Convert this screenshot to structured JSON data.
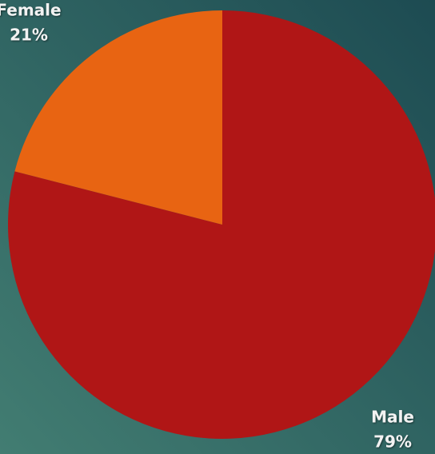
{
  "chart_data": {
    "type": "pie",
    "categories": [
      "Male",
      "Female"
    ],
    "values": [
      79,
      21
    ],
    "value_labels": [
      "79%",
      "21%"
    ],
    "colors": [
      "#b01616",
      "#e86412"
    ]
  }
}
